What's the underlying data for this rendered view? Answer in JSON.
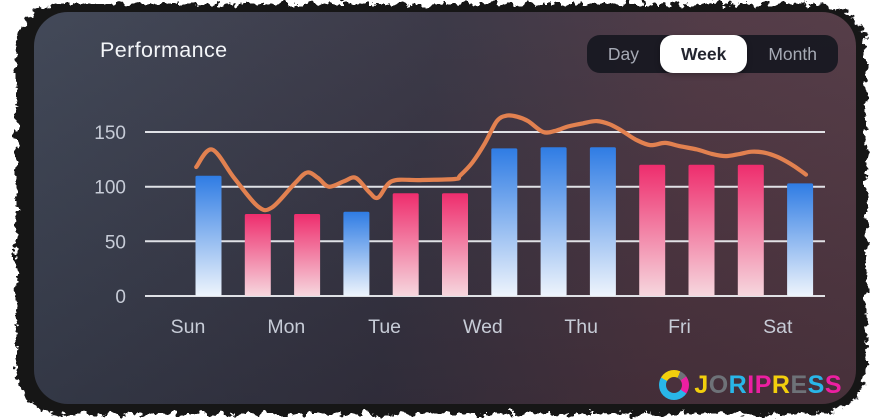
{
  "header": {
    "title": "Performance"
  },
  "toolbar": {
    "options": [
      {
        "label": "Day",
        "selected": false
      },
      {
        "label": "Week",
        "selected": true
      },
      {
        "label": "Month",
        "selected": false
      }
    ]
  },
  "chart_data": {
    "type": "bar",
    "title": "Performance",
    "xlabel": "",
    "ylabel": "",
    "ylim": [
      0,
      150
    ],
    "y_ticks": [
      0,
      50,
      100,
      150
    ],
    "grid": true,
    "legend": "none",
    "x_labels": [
      "Sun",
      "Mon",
      "Tue",
      "Wed",
      "Thu",
      "Fri",
      "Sat"
    ],
    "bars": [
      {
        "value": 110,
        "style": "blue"
      },
      {
        "value": 75,
        "style": "pink"
      },
      {
        "value": 75,
        "style": "pink"
      },
      {
        "value": 77,
        "style": "blue"
      },
      {
        "value": 94,
        "style": "pink"
      },
      {
        "value": 94,
        "style": "pink"
      },
      {
        "value": 135,
        "style": "blue"
      },
      {
        "value": 136,
        "style": "blue"
      },
      {
        "value": 136,
        "style": "blue"
      },
      {
        "value": 120,
        "style": "pink"
      },
      {
        "value": 120,
        "style": "pink"
      },
      {
        "value": 120,
        "style": "pink"
      },
      {
        "value": 103,
        "style": "blue"
      }
    ],
    "bar_styles": {
      "blue": {
        "top": "#2f7ce4",
        "bottom": "#eef4fc"
      },
      "pink": {
        "top": "#ee2d6d",
        "bottom": "#f6d7de"
      }
    },
    "line_series": {
      "name": "trend",
      "color": "#e28150",
      "points": [
        [
          -0.25,
          118
        ],
        [
          0.07,
          134
        ],
        [
          0.52,
          108
        ],
        [
          1.0,
          82
        ],
        [
          1.29,
          81
        ],
        [
          1.75,
          103
        ],
        [
          2.0,
          113
        ],
        [
          2.22,
          108
        ],
        [
          2.44,
          100
        ],
        [
          2.75,
          105
        ],
        [
          2.99,
          108
        ],
        [
          3.26,
          95
        ],
        [
          3.44,
          90
        ],
        [
          3.72,
          105
        ],
        [
          4.29,
          106
        ],
        [
          5.0,
          107
        ],
        [
          5.1,
          110
        ],
        [
          5.35,
          122
        ],
        [
          5.61,
          140
        ],
        [
          5.85,
          160
        ],
        [
          6.05,
          165
        ],
        [
          6.26,
          164
        ],
        [
          6.48,
          160
        ],
        [
          6.79,
          150
        ],
        [
          7.03,
          151
        ],
        [
          7.29,
          155
        ],
        [
          7.6,
          158
        ],
        [
          7.88,
          160
        ],
        [
          8.14,
          157
        ],
        [
          8.39,
          151
        ],
        [
          8.67,
          143
        ],
        [
          8.96,
          138
        ],
        [
          9.26,
          140
        ],
        [
          9.56,
          137
        ],
        [
          9.91,
          134
        ],
        [
          10.21,
          130
        ],
        [
          10.5,
          128
        ],
        [
          10.78,
          130
        ],
        [
          11.02,
          132
        ],
        [
          11.29,
          131
        ],
        [
          11.55,
          127
        ],
        [
          11.8,
          121
        ],
        [
          12.0,
          115
        ],
        [
          12.12,
          111
        ]
      ]
    },
    "axis_text_color": "#c7ccd7",
    "grid_color": "#eef0f4"
  },
  "watermark": {
    "text": "JORIPRESS",
    "letters": [
      {
        "ch": "J",
        "color": "#f2cf0d"
      },
      {
        "ch": "O",
        "color": "#6e7278"
      },
      {
        "ch": "R",
        "color": "#29b6e8"
      },
      {
        "ch": "I",
        "color": "#ec1fa1"
      },
      {
        "ch": "P",
        "color": "#ec1fa1"
      },
      {
        "ch": "R",
        "color": "#f2cf0d"
      },
      {
        "ch": "E",
        "color": "#6e7278"
      },
      {
        "ch": "S",
        "color": "#29b6e8"
      },
      {
        "ch": "S",
        "color": "#ec1fa1"
      }
    ],
    "brand_palette": {
      "cyan": "#29b6e8",
      "yellow": "#f2cf0d",
      "magenta": "#ec1fa1",
      "gray": "#6e7278"
    }
  }
}
